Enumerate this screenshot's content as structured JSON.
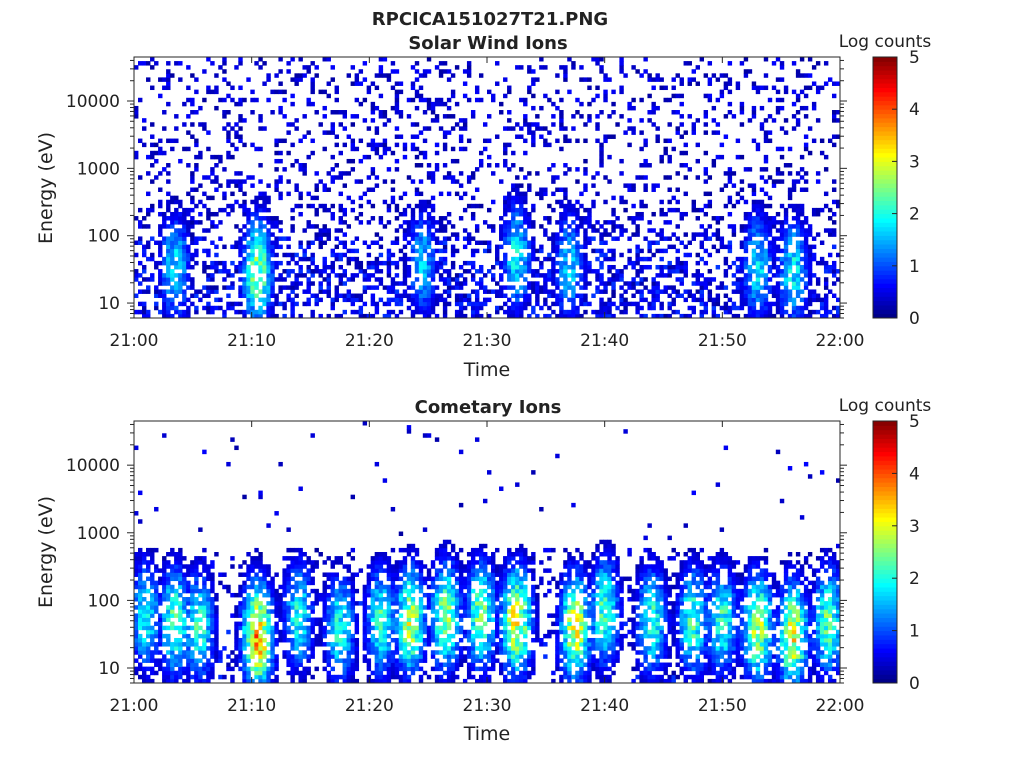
{
  "figure_title": "RPCICA151027T21.PNG",
  "colormap": [
    "#00008f",
    "#0000ff",
    "#0080ff",
    "#00ffff",
    "#80ff80",
    "#ffff00",
    "#ff8000",
    "#ff0000",
    "#800000"
  ],
  "chart_data": [
    {
      "type": "heatmap",
      "title": "Solar Wind Ions",
      "xlabel": "Time",
      "ylabel": "Energy (eV)",
      "x_ticks": [
        "21:00",
        "21:10",
        "21:20",
        "21:30",
        "21:40",
        "21:50",
        "22:00"
      ],
      "x_range_minutes": [
        0,
        60
      ],
      "y_scale": "log",
      "y_ticks": [
        "10",
        "100",
        "1000",
        "10000"
      ],
      "y_range": [
        6,
        45000
      ],
      "colorbar": {
        "label": "Log counts",
        "min": 0,
        "max": 5,
        "ticks": [
          "0",
          "1",
          "2",
          "3",
          "4",
          "5"
        ]
      },
      "background_noise_level": 0.35,
      "bursts": [
        {
          "time_min": 3.5,
          "energy_eV": 35,
          "log_counts": 1.8
        },
        {
          "time_min": 10.5,
          "energy_eV": 30,
          "log_counts": 2.6
        },
        {
          "time_min": 24.5,
          "energy_eV": 40,
          "log_counts": 1.6
        },
        {
          "time_min": 32.5,
          "energy_eV": 50,
          "log_counts": 1.9
        },
        {
          "time_min": 37.0,
          "energy_eV": 35,
          "log_counts": 1.7
        },
        {
          "time_min": 53.0,
          "energy_eV": 35,
          "log_counts": 1.8
        },
        {
          "time_min": 56.0,
          "energy_eV": 30,
          "log_counts": 1.9
        }
      ]
    },
    {
      "type": "heatmap",
      "title": "Cometary Ions",
      "xlabel": "Time",
      "ylabel": "Energy (eV)",
      "x_ticks": [
        "21:00",
        "21:10",
        "21:20",
        "21:30",
        "21:40",
        "21:50",
        "22:00"
      ],
      "x_range_minutes": [
        0,
        60
      ],
      "y_scale": "log",
      "y_ticks": [
        "10",
        "100",
        "1000",
        "10000"
      ],
      "y_range": [
        6,
        45000
      ],
      "colorbar": {
        "label": "Log counts",
        "min": 0,
        "max": 5,
        "ticks": [
          "0",
          "1",
          "2",
          "3",
          "4",
          "5"
        ]
      },
      "background_noise_level": 0.02,
      "bursts": [
        {
          "time_min": 1.0,
          "energy_eV": 60,
          "log_counts": 2.0
        },
        {
          "time_min": 3.5,
          "energy_eV": 50,
          "log_counts": 2.4
        },
        {
          "time_min": 5.5,
          "energy_eV": 40,
          "log_counts": 2.2
        },
        {
          "time_min": 10.5,
          "energy_eV": 30,
          "log_counts": 3.6
        },
        {
          "time_min": 14.0,
          "energy_eV": 60,
          "log_counts": 2.0
        },
        {
          "time_min": 17.5,
          "energy_eV": 40,
          "log_counts": 2.1
        },
        {
          "time_min": 21.0,
          "energy_eV": 50,
          "log_counts": 2.2
        },
        {
          "time_min": 23.5,
          "energy_eV": 50,
          "log_counts": 2.9
        },
        {
          "time_min": 26.5,
          "energy_eV": 60,
          "log_counts": 2.7
        },
        {
          "time_min": 29.5,
          "energy_eV": 60,
          "log_counts": 2.6
        },
        {
          "time_min": 32.5,
          "energy_eV": 50,
          "log_counts": 3.2
        },
        {
          "time_min": 37.5,
          "energy_eV": 40,
          "log_counts": 3.1
        },
        {
          "time_min": 40.0,
          "energy_eV": 70,
          "log_counts": 2.3
        },
        {
          "time_min": 44.0,
          "energy_eV": 50,
          "log_counts": 2.2
        },
        {
          "time_min": 47.5,
          "energy_eV": 50,
          "log_counts": 2.3
        },
        {
          "time_min": 50.0,
          "energy_eV": 50,
          "log_counts": 2.2
        },
        {
          "time_min": 53.0,
          "energy_eV": 40,
          "log_counts": 2.9
        },
        {
          "time_min": 56.0,
          "energy_eV": 30,
          "log_counts": 3.1
        },
        {
          "time_min": 59.0,
          "energy_eV": 50,
          "log_counts": 2.4
        }
      ]
    }
  ]
}
